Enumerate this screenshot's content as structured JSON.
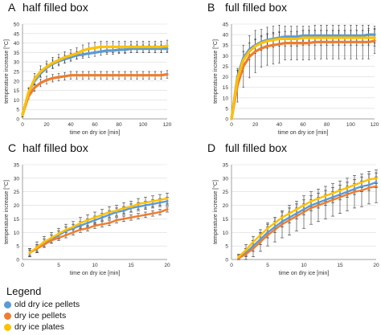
{
  "colors": {
    "old": "#5b9bd5",
    "pellets": "#ed7d31",
    "plates": "#ffc000",
    "error": "#333333",
    "grid": "#d9d9d9",
    "axis": "#888888"
  },
  "legend": {
    "title": "Legend",
    "items": [
      {
        "label": "old dry ice pellets",
        "color": "#5b9bd5"
      },
      {
        "label": "dry ice pellets",
        "color": "#ed7d31"
      },
      {
        "label": "dry ice plates",
        "color": "#ffc000"
      }
    ]
  },
  "chart_data": [
    {
      "panel": "A",
      "type": "line",
      "title": "half filled box",
      "xlabel": "time on dry ice [min]",
      "ylabel": "temperature increase [°C]",
      "xlim": [
        0,
        120
      ],
      "ylim": [
        0,
        50
      ],
      "xticks": [
        0,
        20,
        40,
        60,
        80,
        100,
        120
      ],
      "yticks": [
        0,
        5,
        10,
        15,
        20,
        25,
        30,
        35,
        40,
        45,
        50
      ],
      "x": [
        0,
        5,
        10,
        15,
        20,
        25,
        30,
        35,
        40,
        45,
        50,
        55,
        60,
        65,
        70,
        75,
        80,
        85,
        90,
        95,
        100,
        105,
        110,
        115,
        120
      ],
      "series": [
        {
          "name": "old dry ice pellets",
          "values": [
            2,
            14,
            20,
            24,
            27,
            29,
            30.5,
            31.5,
            32.5,
            33.5,
            34,
            34.5,
            35,
            35.5,
            36,
            36,
            36.5,
            36.5,
            37,
            37,
            37,
            37,
            37,
            37,
            37
          ],
          "error": [
            1,
            2,
            2,
            2,
            2,
            2,
            2,
            2,
            2,
            2,
            2,
            2,
            2,
            2,
            2,
            2,
            2,
            2,
            2,
            2,
            2,
            2,
            2,
            2,
            2
          ]
        },
        {
          "name": "dry ice pellets",
          "values": [
            2,
            12,
            16.5,
            19,
            20.5,
            21.5,
            22,
            22.5,
            23,
            23,
            23,
            23,
            23,
            23,
            23,
            23,
            23,
            23,
            23,
            23,
            23,
            23,
            23,
            23,
            23.5
          ],
          "error": [
            1,
            1.5,
            2,
            2,
            2,
            2,
            2,
            2,
            2,
            2,
            2,
            2,
            2,
            2,
            2,
            2,
            2,
            2,
            2,
            2,
            2,
            2,
            2,
            2,
            2
          ]
        },
        {
          "name": "dry ice plates",
          "values": [
            2,
            14,
            21,
            25,
            27.5,
            29.5,
            31,
            32.5,
            33.5,
            34.5,
            36,
            37,
            37.5,
            38,
            38,
            38,
            38,
            38,
            38,
            38,
            38,
            38,
            38,
            38,
            38.5
          ],
          "error": [
            1,
            2.5,
            3,
            3,
            3,
            3,
            3,
            3,
            3,
            3,
            3,
            3,
            3,
            3,
            3,
            3,
            3,
            3,
            3,
            3,
            3,
            3,
            3,
            3,
            3
          ]
        }
      ]
    },
    {
      "panel": "B",
      "type": "line",
      "title": "full filled box",
      "xlabel": "time on dry ice [min]",
      "ylabel": "temperature increase [°C]",
      "xlim": [
        0,
        120
      ],
      "ylim": [
        0,
        45
      ],
      "xticks": [
        0,
        20,
        40,
        60,
        80,
        100,
        120
      ],
      "yticks": [
        0,
        5,
        10,
        15,
        20,
        25,
        30,
        35,
        40,
        45
      ],
      "x": [
        0,
        5,
        10,
        15,
        20,
        25,
        30,
        35,
        40,
        45,
        50,
        55,
        60,
        65,
        70,
        75,
        80,
        85,
        90,
        95,
        100,
        105,
        110,
        115,
        120
      ],
      "series": [
        {
          "name": "old dry ice pellets",
          "values": [
            0,
            20,
            29,
            33,
            35,
            36.5,
            37.5,
            38,
            38.5,
            39,
            39,
            39,
            39.5,
            39.5,
            39.5,
            39.5,
            39.5,
            39.5,
            39.5,
            39.5,
            39.5,
            39.5,
            39.5,
            40,
            40
          ],
          "error": [
            1,
            3,
            3,
            3,
            2.5,
            2.5,
            2.5,
            2.5,
            2.5,
            2.5,
            2.5,
            2.5,
            2.5,
            2.5,
            2.5,
            2.5,
            2.5,
            2.5,
            2.5,
            2.5,
            2.5,
            2.5,
            2.5,
            3,
            4
          ]
        },
        {
          "name": "dry ice pellets",
          "values": [
            0,
            16,
            25,
            29.5,
            32,
            33.5,
            34.5,
            35,
            35.5,
            36,
            36,
            36,
            36,
            36,
            36.5,
            36.5,
            36.5,
            36.5,
            36.5,
            36.5,
            36.5,
            36.5,
            36.5,
            36.5,
            37
          ],
          "error": [
            1,
            8,
            10,
            10,
            10,
            9,
            9,
            9,
            9,
            8,
            8,
            8,
            8,
            8,
            8,
            8,
            8,
            8,
            8,
            8,
            8,
            8,
            8,
            8,
            6
          ]
        },
        {
          "name": "dry ice plates",
          "values": [
            0,
            19,
            28,
            32,
            34.5,
            36,
            37,
            37.5,
            38,
            38,
            38,
            38,
            38.5,
            38.5,
            38.5,
            38.5,
            38.5,
            38.5,
            38.5,
            38.5,
            38.5,
            38.5,
            38.5,
            38.5,
            38.5
          ],
          "error": [
            1,
            4,
            4,
            4,
            3.5,
            3.5,
            3.5,
            3.5,
            3.5,
            3.5,
            3.5,
            3.5,
            3.5,
            3.5,
            3.5,
            3.5,
            3.5,
            3.5,
            3.5,
            3.5,
            3.5,
            3.5,
            3.5,
            3.5,
            4
          ]
        }
      ]
    },
    {
      "panel": "C",
      "type": "line",
      "title": "half filled box",
      "xlabel": "time on dry ice [min]",
      "ylabel": "temperature increase [°C]",
      "xlim": [
        0,
        20
      ],
      "ylim": [
        0,
        35
      ],
      "xticks": [
        0,
        5,
        10,
        15,
        20
      ],
      "yticks": [
        0,
        5,
        10,
        15,
        20,
        25,
        30,
        35
      ],
      "x": [
        1,
        2,
        3,
        4,
        5,
        6,
        7,
        8,
        9,
        10,
        11,
        12,
        13,
        14,
        15,
        16,
        17,
        18,
        19,
        20
      ],
      "series": [
        {
          "name": "old dry ice pellets",
          "values": [
            2.5,
            4,
            6,
            7.5,
            9,
            10.5,
            11.5,
            12.5,
            13.5,
            14.5,
            15.5,
            16.5,
            17.5,
            18,
            19,
            19.5,
            20,
            20.5,
            21,
            21.5
          ],
          "error": [
            1.5,
            1.5,
            1.5,
            1.5,
            1.5,
            1.5,
            1.5,
            1.5,
            1.5,
            1.5,
            1.5,
            1.5,
            1.5,
            1.5,
            1.5,
            1.5,
            1.5,
            1.5,
            1.5,
            1.5
          ]
        },
        {
          "name": "dry ice pellets",
          "values": [
            2.5,
            4,
            5.5,
            7,
            8,
            9,
            10,
            11,
            11.5,
            12.5,
            13,
            13.5,
            14.5,
            15,
            15.5,
            16,
            16.5,
            17,
            17.5,
            18.5
          ],
          "error": [
            1,
            1,
            1,
            1,
            1,
            1,
            1,
            1,
            1,
            1,
            1,
            1,
            1,
            1,
            1,
            1,
            1,
            1,
            1,
            1
          ]
        },
        {
          "name": "dry ice plates",
          "values": [
            2.5,
            4.5,
            6.5,
            8,
            9.5,
            11,
            12,
            13.5,
            14.5,
            15.5,
            16.5,
            17.5,
            18,
            19,
            19.5,
            20.5,
            21,
            21.5,
            22,
            22.5
          ],
          "error": [
            1.5,
            2,
            2,
            2,
            2,
            2,
            2,
            2,
            2,
            2,
            2,
            2,
            2,
            2,
            2,
            2,
            2,
            2,
            2,
            2
          ]
        }
      ]
    },
    {
      "panel": "D",
      "type": "line",
      "title": "full filled box",
      "xlabel": "time on dry ice [min]",
      "ylabel": "temperature increase [°C]",
      "xlim": [
        0,
        20
      ],
      "ylim": [
        0,
        35
      ],
      "xticks": [
        0,
        5,
        10,
        15,
        20
      ],
      "yticks": [
        0,
        5,
        10,
        15,
        20,
        25,
        30,
        35
      ],
      "x": [
        1,
        2,
        3,
        4,
        5,
        6,
        7,
        8,
        9,
        10,
        11,
        12,
        13,
        14,
        15,
        16,
        17,
        18,
        19,
        20
      ],
      "series": [
        {
          "name": "old dry ice pellets",
          "values": [
            0.5,
            2.5,
            5,
            7.5,
            10,
            12,
            14,
            15.5,
            17,
            18.5,
            20,
            21,
            22,
            23,
            24,
            25,
            26,
            27,
            27.5,
            28.5
          ],
          "error": [
            1,
            1.5,
            2,
            2,
            2,
            2,
            2,
            2,
            2,
            2,
            2,
            2,
            2,
            2,
            2,
            2,
            2,
            2,
            2,
            2
          ]
        },
        {
          "name": "dry ice pellets",
          "values": [
            0.5,
            2,
            4,
            6.5,
            9,
            11,
            13,
            14.5,
            16,
            17.5,
            19,
            20,
            21,
            22,
            23,
            24,
            25,
            25.5,
            26.5,
            27
          ],
          "error": [
            1,
            2,
            3,
            3.5,
            4,
            4.5,
            5,
            5.5,
            5.5,
            6,
            6,
            6,
            6,
            6,
            6,
            6,
            6,
            6,
            6,
            6
          ]
        },
        {
          "name": "dry ice plates",
          "values": [
            1,
            3.5,
            6.5,
            9,
            11.5,
            13.5,
            15.5,
            17,
            18.5,
            20,
            21.5,
            22.5,
            23.5,
            24.5,
            25.5,
            26.5,
            27.5,
            28.5,
            29.5,
            30
          ],
          "error": [
            1,
            2,
            2,
            2,
            2,
            2,
            2,
            2,
            2,
            2,
            2,
            2,
            2,
            2,
            2,
            2,
            2,
            2,
            2,
            2
          ]
        }
      ]
    }
  ]
}
